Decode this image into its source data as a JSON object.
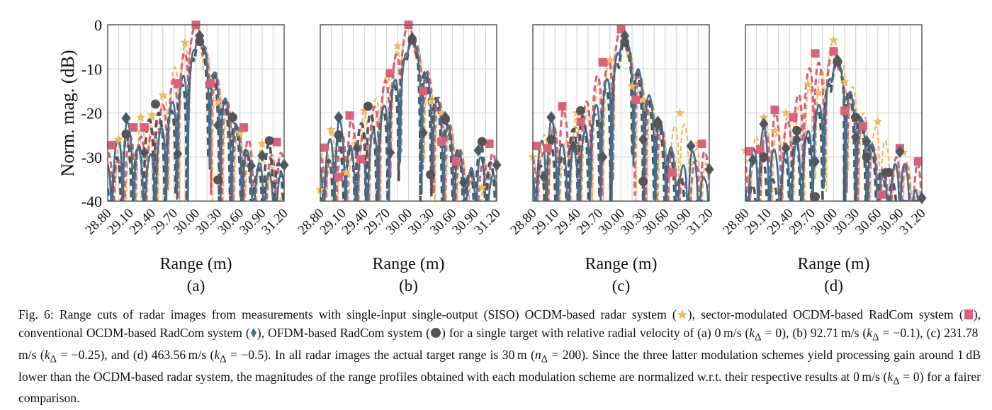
{
  "figure": {
    "ylabel": "Norm. mag. (dB)",
    "xlabel": "Range (m)",
    "colors": {
      "siso_ocdm": "#f5b85c",
      "sector_ocdm": "#d9627a",
      "conv_ocdm": "#41708f",
      "ofdm": "#555555",
      "grid": "#d6d6d6",
      "axis": "#555555"
    }
  },
  "chart_data": [
    {
      "type": "line",
      "panel": "(a)",
      "title": "",
      "xlabel": "Range (m)",
      "ylabel": "Norm. mag. (dB)",
      "xlim": [
        28.8,
        31.2
      ],
      "ylim": [
        -40,
        0
      ],
      "xticks": [
        "28.80",
        "29.10",
        "29.40",
        "29.70",
        "30.00",
        "30.30",
        "30.60",
        "30.90",
        "31.20"
      ],
      "yticks": [
        "0",
        "-10",
        "-20",
        "-30",
        "-40"
      ],
      "grid": true,
      "velocity": "0 m/s",
      "series": [
        {
          "name": "SISO OCDM-based radar",
          "marker": "star",
          "points": [
            [
              28.95,
              -26
            ],
            [
              29.25,
              -21
            ],
            [
              29.4,
              -20.5
            ],
            [
              29.55,
              -16
            ],
            [
              29.85,
              -4
            ],
            [
              30.0,
              0
            ],
            [
              30.3,
              -17.5
            ],
            [
              30.6,
              -24.5
            ],
            [
              30.9,
              -27
            ]
          ]
        },
        {
          "name": "Sector-modulated OCDM-based RadCom",
          "marker": "square",
          "points": [
            [
              28.85,
              -27.3
            ],
            [
              29.15,
              -23.3
            ],
            [
              29.3,
              -23.3
            ],
            [
              29.75,
              -13.3
            ],
            [
              30.0,
              0
            ],
            [
              30.2,
              -13.3
            ],
            [
              30.65,
              -23.3
            ],
            [
              31.1,
              -26.6
            ]
          ]
        },
        {
          "name": "Conventional OCDM-based RadCom",
          "marker": "diamond",
          "points": [
            [
              29.05,
              -21.2
            ],
            [
              29.3,
              -29
            ],
            [
              29.75,
              -29.3
            ],
            [
              30.05,
              -2.5
            ],
            [
              30.3,
              -22.8
            ],
            [
              30.5,
              -21
            ],
            [
              30.75,
              -32
            ],
            [
              30.9,
              -29.7
            ],
            [
              31.2,
              -31.8
            ]
          ]
        },
        {
          "name": "OFDM-based RadCom",
          "marker": "circle",
          "points": [
            [
              29.05,
              -24.8
            ],
            [
              29.45,
              -18
            ],
            [
              30.05,
              -3.8
            ],
            [
              30.3,
              -35.2
            ],
            [
              30.5,
              -21
            ],
            [
              31.0,
              -26.3
            ]
          ]
        }
      ]
    },
    {
      "type": "line",
      "panel": "(b)",
      "xlabel": "Range (m)",
      "xlim": [
        28.8,
        31.2
      ],
      "ylim": [
        -40,
        0
      ],
      "xticks": [
        "28.80",
        "29.10",
        "29.40",
        "29.70",
        "30.00",
        "30.30",
        "30.60",
        "30.90",
        "31.20"
      ],
      "grid": true,
      "velocity": "92.71 m/s",
      "series": [
        {
          "name": "SISO OCDM-based radar",
          "marker": "star",
          "points": [
            [
              28.8,
              -37.5
            ],
            [
              28.95,
              -23.8
            ],
            [
              29.15,
              -33.5
            ],
            [
              29.4,
              -19.5
            ],
            [
              29.85,
              -4.8
            ],
            [
              30.0,
              0
            ],
            [
              30.3,
              -17.5
            ],
            [
              30.45,
              -20
            ],
            [
              31.0,
              -37
            ]
          ]
        },
        {
          "name": "Sector-modulated OCDM-based RadCom",
          "marker": "square",
          "points": [
            [
              28.85,
              -27.9
            ],
            [
              29.05,
              -34.5
            ],
            [
              29.2,
              -20.6
            ],
            [
              29.35,
              -30.5
            ],
            [
              29.75,
              -11
            ],
            [
              30.0,
              0
            ],
            [
              30.2,
              -15
            ],
            [
              30.45,
              -26.5
            ],
            [
              30.65,
              -31
            ],
            [
              31.1,
              -27
            ]
          ]
        },
        {
          "name": "Conventional OCDM-based RadCom",
          "marker": "diamond",
          "points": [
            [
              29.05,
              -21
            ],
            [
              29.3,
              -28
            ],
            [
              29.75,
              -29
            ],
            [
              30.05,
              -3
            ],
            [
              30.2,
              -24.5
            ],
            [
              30.5,
              -21
            ],
            [
              30.75,
              -35.8
            ],
            [
              30.95,
              -28.5
            ],
            [
              31.2,
              -31.8
            ]
          ]
        },
        {
          "name": "OFDM-based RadCom",
          "marker": "circle",
          "points": [
            [
              29.05,
              -25
            ],
            [
              29.45,
              -18.5
            ],
            [
              30.05,
              -3.5
            ],
            [
              30.3,
              -34
            ],
            [
              30.5,
              -21.5
            ],
            [
              31.0,
              -26.5
            ]
          ]
        }
      ]
    },
    {
      "type": "line",
      "panel": "(c)",
      "xlabel": "Range (m)",
      "xlim": [
        28.8,
        31.2
      ],
      "ylim": [
        -40,
        0
      ],
      "xticks": [
        "28.80",
        "29.10",
        "29.40",
        "29.70",
        "30.00",
        "30.30",
        "30.60",
        "30.90",
        "31.20"
      ],
      "grid": true,
      "velocity": "231.78 m/s",
      "series": [
        {
          "name": "SISO OCDM-based radar",
          "marker": "star",
          "points": [
            [
              28.8,
              -30
            ],
            [
              29.05,
              -21
            ],
            [
              29.4,
              -20
            ],
            [
              29.85,
              -8
            ],
            [
              30.0,
              -1
            ],
            [
              30.15,
              -14
            ],
            [
              30.3,
              -17
            ],
            [
              30.8,
              -20
            ],
            [
              31.05,
              -27
            ]
          ]
        },
        {
          "name": "Sector-modulated OCDM-based RadCom",
          "marker": "square",
          "points": [
            [
              28.85,
              -27.5
            ],
            [
              29.0,
              -28
            ],
            [
              29.2,
              -18.5
            ],
            [
              29.45,
              -22
            ],
            [
              29.75,
              -8.5
            ],
            [
              30.0,
              -1
            ],
            [
              30.2,
              -17
            ],
            [
              30.7,
              -33.5
            ],
            [
              31.1,
              -27
            ]
          ]
        },
        {
          "name": "Conventional OCDM-based RadCom",
          "marker": "diamond",
          "points": [
            [
              28.95,
              -34.5
            ],
            [
              29.05,
              -21
            ],
            [
              29.35,
              -27.6
            ],
            [
              29.75,
              -30
            ],
            [
              30.05,
              -2.5
            ],
            [
              30.3,
              -26
            ],
            [
              30.5,
              -22
            ],
            [
              30.95,
              -27.5
            ],
            [
              31.2,
              -32.8
            ]
          ]
        },
        {
          "name": "OFDM-based RadCom",
          "marker": "circle",
          "points": [
            [
              29.05,
              -26
            ],
            [
              29.45,
              -19.5
            ],
            [
              30.05,
              -4
            ],
            [
              30.3,
              -35.5
            ],
            [
              30.5,
              -22.5
            ]
          ]
        }
      ]
    },
    {
      "type": "line",
      "panel": "(d)",
      "xlabel": "Range (m)",
      "xlim": [
        28.8,
        31.2
      ],
      "ylim": [
        -40,
        0
      ],
      "xticks": [
        "28.80",
        "29.10",
        "29.40",
        "29.70",
        "30.00",
        "30.30",
        "30.60",
        "30.90",
        "31.20"
      ],
      "grid": true,
      "velocity": "463.56 m/s",
      "series": [
        {
          "name": "SISO OCDM-based radar",
          "marker": "star",
          "points": [
            [
              28.8,
              -28.5
            ],
            [
              29.05,
              -21
            ],
            [
              29.2,
              -24
            ],
            [
              29.35,
              -20
            ],
            [
              29.65,
              -13.5
            ],
            [
              29.8,
              -15.5
            ],
            [
              30.0,
              -3.5
            ],
            [
              30.15,
              -13
            ],
            [
              30.3,
              -21.5
            ],
            [
              30.6,
              -22
            ],
            [
              30.95,
              -29
            ]
          ]
        },
        {
          "name": "Sector-modulated OCDM-based RadCom",
          "marker": "square",
          "points": [
            [
              28.85,
              -28.7
            ],
            [
              29.0,
              -28.3
            ],
            [
              29.2,
              -19.3
            ],
            [
              29.45,
              -21
            ],
            [
              29.75,
              -6.5
            ],
            [
              30.0,
              -6
            ],
            [
              30.15,
              -19.5
            ],
            [
              30.4,
              -23
            ],
            [
              30.65,
              -38.5
            ],
            [
              30.9,
              -28
            ],
            [
              31.15,
              -31
            ]
          ]
        },
        {
          "name": "Conventional OCDM-based RadCom",
          "marker": "diamond",
          "points": [
            [
              28.9,
              -30.7
            ],
            [
              29.05,
              -22.5
            ],
            [
              29.35,
              -28
            ],
            [
              29.5,
              -26
            ],
            [
              29.75,
              -31
            ],
            [
              30.05,
              -8
            ],
            [
              30.3,
              -25.5
            ],
            [
              30.45,
              -26.5
            ],
            [
              30.7,
              -33.7
            ],
            [
              30.9,
              -28.8
            ],
            [
              31.2,
              -39.3
            ]
          ]
        },
        {
          "name": "OFDM-based RadCom",
          "marker": "circle",
          "points": [
            [
              29.05,
              -30
            ],
            [
              29.5,
              -24
            ],
            [
              29.75,
              -39
            ],
            [
              30.05,
              -8.5
            ],
            [
              30.3,
              -21
            ],
            [
              30.45,
              -30
            ],
            [
              30.75,
              -33.5
            ]
          ]
        }
      ]
    }
  ],
  "panels": [
    {
      "label": "(a)"
    },
    {
      "label": "(b)"
    },
    {
      "label": "(c)"
    },
    {
      "label": "(d)"
    }
  ],
  "caption": {
    "p1": "Fig. 6: Range cuts of radar images from measurements with single-input single-output (SISO) OCDM-based radar system (",
    "p2": "), sector-modulated OCDM-based RadCom system (",
    "p3": "), conventional OCDM-based RadCom system (",
    "p4": "), OFDM-based RadCom system (",
    "p5": ") for a single target with relative radial velocity of (a) 0 m/s (",
    "k": "k",
    "delta": "Δ",
    "p6": " = 0), (b) 92.71 m/s (",
    "p7": " = −0.1), (c) 231.78 m/s (",
    "p8": " = −0.25), and (d) 463.56 m/s (",
    "p9": " = −0.5). In all radar images the actual target range is 30 m (",
    "n": "n",
    "p10": " = 200). Since the three latter modulation schemes yield processing gain around 1 dB lower than the OCDM-based radar system, the magnitudes of the range profiles obtained with each modulation scheme are normalized w.r.t. their respective results at 0 m/s (",
    "p11": " = 0) for a fairer comparison."
  }
}
